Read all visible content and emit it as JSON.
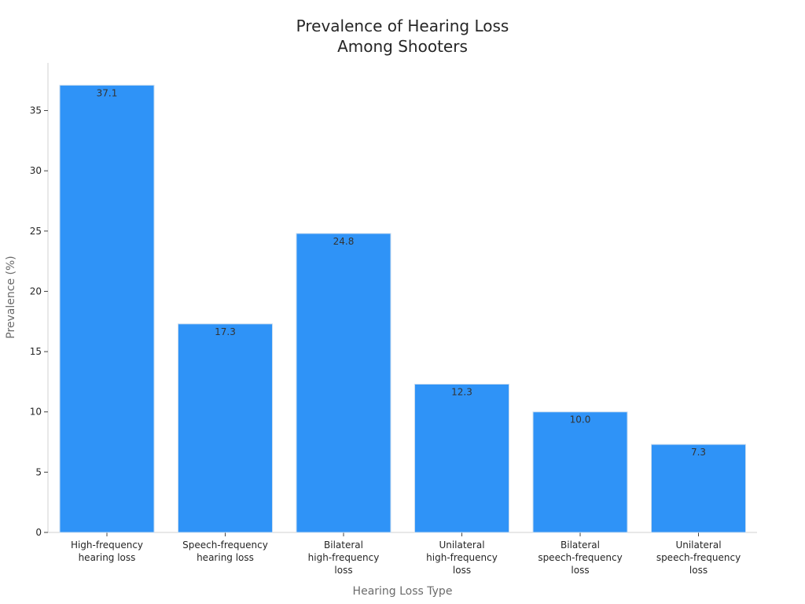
{
  "chart_data": {
    "type": "bar",
    "title_lines": [
      "Prevalence of Hearing Loss",
      "Among Shooters"
    ],
    "xlabel": "Hearing Loss Type",
    "ylabel": "Prevalence (%)",
    "categories": [
      [
        "High-frequency",
        "hearing loss"
      ],
      [
        "Speech-frequency",
        "hearing loss"
      ],
      [
        "Bilateral",
        "high-frequency",
        "loss"
      ],
      [
        "Unilateral",
        "high-frequency",
        "loss"
      ],
      [
        "Bilateral",
        "speech-frequency",
        "loss"
      ],
      [
        "Unilateral",
        "speech-frequency",
        "loss"
      ]
    ],
    "values": [
      37.1,
      17.3,
      24.8,
      12.3,
      10.0,
      7.3
    ],
    "value_labels": [
      "37.1",
      "17.3",
      "24.8",
      "12.3",
      "10.0",
      "7.3"
    ],
    "yticks": [
      0,
      5,
      10,
      15,
      20,
      25,
      30,
      35
    ],
    "ylim": [
      0,
      38.95
    ],
    "bar_color": "#2f93f7",
    "grid": false,
    "legend": "none"
  }
}
